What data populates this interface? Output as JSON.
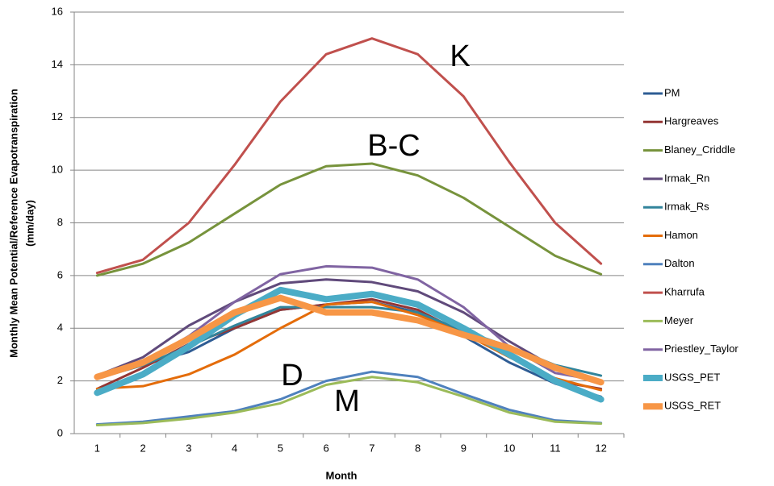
{
  "chart_data": {
    "type": "line",
    "xlabel": "Month",
    "ylabel": [
      "Monthly Mean Potential/Reference Evapotranspiration",
      "(mm/day)"
    ],
    "categories": [
      1,
      2,
      3,
      4,
      5,
      6,
      7,
      8,
      9,
      10,
      11,
      12
    ],
    "ylim": [
      0,
      16
    ],
    "yticks": [
      0,
      2,
      4,
      6,
      8,
      10,
      12,
      14,
      16
    ],
    "grid": true,
    "legend": "right",
    "series": [
      {
        "name": "PM",
        "color": "#2e5c94",
        "width": 3,
        "values": [
          2.1,
          2.6,
          3.1,
          4.0,
          4.7,
          4.9,
          5.0,
          4.6,
          3.7,
          2.7,
          1.9,
          1.4
        ]
      },
      {
        "name": "Hargreaves",
        "color": "#943634",
        "width": 3,
        "values": [
          1.7,
          2.5,
          3.4,
          4.0,
          4.7,
          4.9,
          5.1,
          4.7,
          3.8,
          3.0,
          2.0,
          1.7
        ]
      },
      {
        "name": "Blaney_Criddle",
        "color": "#77933c",
        "width": 3,
        "values": [
          6.0,
          6.45,
          7.25,
          8.35,
          9.45,
          10.15,
          10.25,
          9.8,
          8.95,
          7.85,
          6.75,
          6.05
        ]
      },
      {
        "name": "Irmak_Rn",
        "color": "#604a7b",
        "width": 3,
        "values": [
          2.2,
          2.9,
          4.1,
          5.0,
          5.7,
          5.85,
          5.75,
          5.4,
          4.6,
          3.5,
          2.5,
          2.0
        ]
      },
      {
        "name": "Irmak_Rs",
        "color": "#31849b",
        "width": 3,
        "values": [
          2.1,
          2.6,
          3.3,
          4.1,
          4.8,
          4.8,
          4.8,
          4.6,
          3.9,
          3.3,
          2.6,
          2.2
        ]
      },
      {
        "name": "Hamon",
        "color": "#e46c0a",
        "width": 3,
        "values": [
          1.7,
          1.8,
          2.25,
          3.0,
          4.0,
          4.9,
          5.0,
          4.5,
          3.8,
          2.9,
          2.1,
          1.65
        ]
      },
      {
        "name": "Dalton",
        "color": "#4f81bd",
        "width": 3,
        "values": [
          0.35,
          0.45,
          0.65,
          0.85,
          1.3,
          2.0,
          2.35,
          2.15,
          1.5,
          0.9,
          0.5,
          0.4
        ]
      },
      {
        "name": "Kharrufa",
        "color": "#c0504d",
        "width": 3,
        "values": [
          6.1,
          6.6,
          8.0,
          10.2,
          12.6,
          14.4,
          15.0,
          14.4,
          12.8,
          10.3,
          8.0,
          6.45
        ]
      },
      {
        "name": "Meyer",
        "color": "#9bbb59",
        "width": 3,
        "values": [
          0.32,
          0.4,
          0.57,
          0.8,
          1.15,
          1.85,
          2.15,
          1.95,
          1.4,
          0.8,
          0.45,
          0.38
        ]
      },
      {
        "name": "Priestley_Taylor",
        "color": "#8064a2",
        "width": 3,
        "values": [
          2.2,
          2.7,
          3.7,
          5.0,
          6.05,
          6.35,
          6.3,
          5.85,
          4.8,
          3.3,
          2.3,
          2.0
        ]
      },
      {
        "name": "USGS_PET",
        "color": "#4bacc6",
        "width": 8,
        "values": [
          1.55,
          2.25,
          3.3,
          4.5,
          5.45,
          5.1,
          5.3,
          4.9,
          4.0,
          3.0,
          2.0,
          1.3
        ]
      },
      {
        "name": "USGS_RET",
        "color": "#f79646",
        "width": 8,
        "values": [
          2.15,
          2.7,
          3.6,
          4.6,
          5.15,
          4.6,
          4.6,
          4.3,
          3.75,
          3.25,
          2.5,
          1.95
        ]
      }
    ],
    "annotations": [
      "K",
      "B-C",
      "D",
      "M"
    ]
  }
}
